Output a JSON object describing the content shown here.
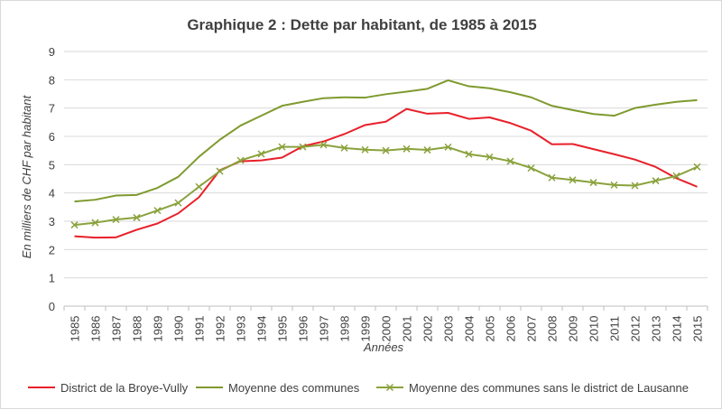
{
  "chart_data": {
    "type": "line",
    "title": "Graphique 2 : Dette par habitant, de 1985 à 2015",
    "xlabel": "Années",
    "ylabel": "En milliers de CHF par habitant",
    "ylim": [
      0,
      9
    ],
    "yticks": [
      "0",
      "1",
      "2",
      "3",
      "4",
      "5",
      "6",
      "7",
      "8",
      "9"
    ],
    "grid": "horizontal",
    "legend_position": "bottom",
    "x": [
      "1985",
      "1986",
      "1987",
      "1988",
      "1989",
      "1990",
      "1991",
      "1992",
      "1993",
      "1994",
      "1995",
      "1996",
      "1997",
      "1998",
      "1999",
      "2000",
      "2001",
      "2002",
      "2003",
      "2004",
      "2005",
      "2006",
      "2007",
      "2008",
      "2009",
      "2010",
      "2011",
      "2012",
      "2013",
      "2014",
      "2015"
    ],
    "series": [
      {
        "name": "District de la Broye-Vully",
        "color": "#e8202a",
        "marker": "none",
        "values": [
          2.47,
          2.42,
          2.43,
          2.7,
          2.92,
          3.28,
          3.85,
          4.8,
          5.12,
          5.15,
          5.25,
          5.65,
          5.82,
          6.08,
          6.4,
          6.52,
          6.97,
          6.8,
          6.83,
          6.62,
          6.67,
          6.47,
          6.2,
          5.72,
          5.73,
          5.55,
          5.37,
          5.18,
          4.92,
          4.52,
          4.22
        ]
      },
      {
        "name": "Moyenne des communes",
        "color": "#7f9a2e",
        "marker": "none",
        "values": [
          3.7,
          3.76,
          3.91,
          3.93,
          4.18,
          4.57,
          5.28,
          5.88,
          6.38,
          6.73,
          7.08,
          7.22,
          7.35,
          7.38,
          7.37,
          7.49,
          7.58,
          7.68,
          7.98,
          7.77,
          7.7,
          7.56,
          7.38,
          7.08,
          6.93,
          6.79,
          6.73,
          7.0,
          7.12,
          7.22,
          7.28
        ]
      },
      {
        "name": "Moyenne des communes sans le district de Lausanne",
        "color": "#8aa23c",
        "marker": "x",
        "values": [
          2.87,
          2.95,
          3.06,
          3.13,
          3.38,
          3.65,
          4.22,
          4.77,
          5.15,
          5.38,
          5.63,
          5.63,
          5.7,
          5.59,
          5.53,
          5.5,
          5.56,
          5.52,
          5.62,
          5.37,
          5.27,
          5.12,
          4.88,
          4.54,
          4.46,
          4.37,
          4.28,
          4.26,
          4.43,
          4.6,
          4.92
        ]
      }
    ]
  }
}
